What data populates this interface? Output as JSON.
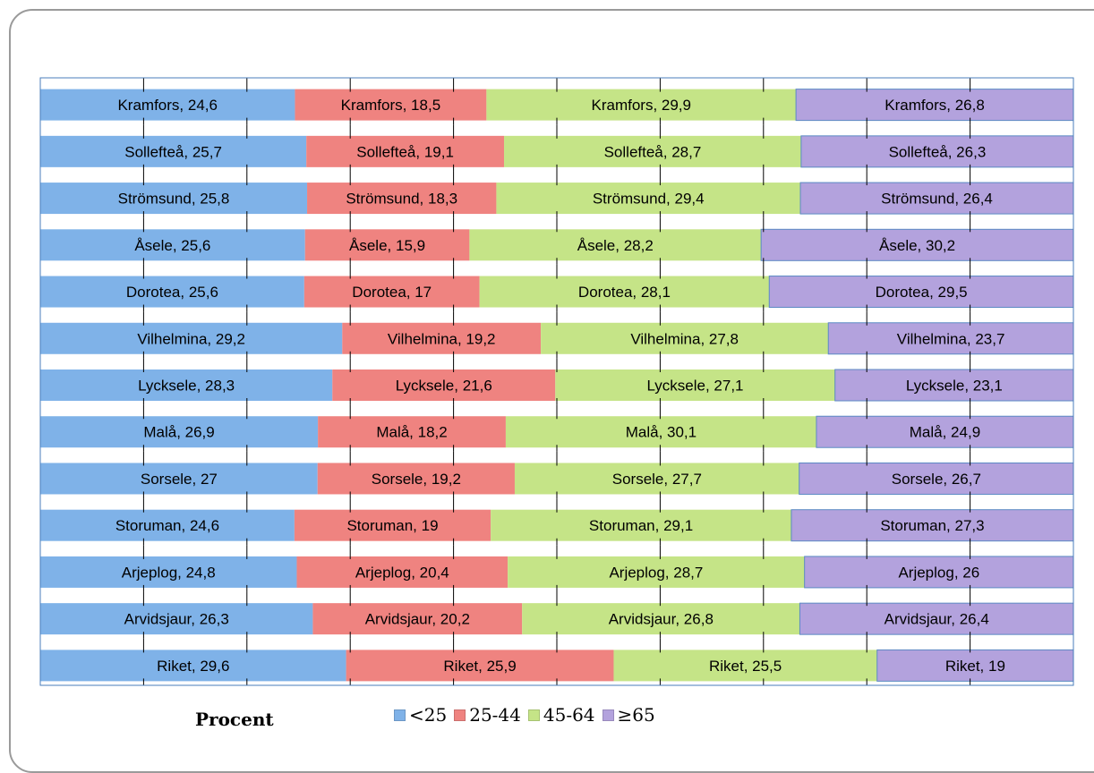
{
  "chart_data": {
    "type": "bar",
    "orientation": "horizontal",
    "stacked": true,
    "xlabel": "Procent",
    "xlim": [
      0,
      100
    ],
    "grid": "vertical",
    "legend_position": "bottom",
    "categories": [
      "Kramfors",
      "Sollefteå",
      "Strömsund",
      "Åsele",
      "Dorotea",
      "Vilhelmina",
      "Lycksele",
      "Malå",
      "Sorsele",
      "Storuman",
      "Arjeplog",
      "Arvidsjaur",
      "Riket"
    ],
    "series": [
      {
        "name": "<25",
        "color": "#7fb2e8",
        "values": [
          24.6,
          25.7,
          25.8,
          25.6,
          25.6,
          29.2,
          28.3,
          26.9,
          27,
          24.6,
          24.8,
          26.3,
          29.6
        ]
      },
      {
        "name": "25-44",
        "color": "#ef8380",
        "values": [
          18.5,
          19.1,
          18.3,
          15.9,
          17,
          19.2,
          21.6,
          18.2,
          19.2,
          19,
          20.4,
          20.2,
          25.9
        ]
      },
      {
        "name": "45-64",
        "color": "#c5e487",
        "values": [
          29.9,
          28.7,
          29.4,
          28.2,
          28.1,
          27.8,
          27.1,
          30.1,
          27.7,
          29.1,
          28.7,
          26.8,
          25.5
        ]
      },
      {
        "name": "≥65",
        "color": "#b3a2dd",
        "values": [
          26.8,
          26.3,
          26.4,
          30.2,
          29.5,
          23.7,
          23.1,
          24.9,
          26.7,
          27.3,
          26,
          26.4,
          19
        ]
      }
    ],
    "data_labels": [
      [
        "Kramfors, 24,6",
        "Sollefteå, 25,7",
        "Strömsund, 25,8",
        "Åsele, 25,6",
        "Dorotea, 25,6",
        "Vilhelmina, 29,2",
        "Lycksele, 28,3",
        "Malå, 26,9",
        "Sorsele, 27",
        "Storuman, 24,6",
        "Arjeplog, 24,8",
        "Arvidsjaur, 26,3",
        "Riket, 29,6"
      ],
      [
        "Kramfors, 18,5",
        "Sollefteå, 19,1",
        "Strömsund, 18,3",
        "Åsele, 15,9",
        "Dorotea, 17",
        "Vilhelmina, 19,2",
        "Lycksele, 21,6",
        "Malå, 18,2",
        "Sorsele, 19,2",
        "Storuman, 19",
        "Arjeplog, 20,4",
        "Arvidsjaur, 20,2",
        "Riket, 25,9"
      ],
      [
        "Kramfors, 29,9",
        "Sollefteå, 28,7",
        "Strömsund, 29,4",
        "Åsele, 28,2",
        "Dorotea, 28,1",
        "Vilhelmina, 27,8",
        "Lycksele, 27,1",
        "Malå, 30,1",
        "Sorsele, 27,7",
        "Storuman, 29,1",
        "Arjeplog, 28,7",
        "Arvidsjaur, 26,8",
        "Riket, 25,5"
      ],
      [
        "Kramfors, 26,8",
        "Sollefteå, 26,3",
        "Strömsund, 26,4",
        "Åsele, 30,2",
        "Dorotea, 29,5",
        "Vilhelmina, 23,7",
        "Lycksele, 23,1",
        "Malå, 24,9",
        "Sorsele, 26,7",
        "Storuman, 27,3",
        "Arjeplog, 26",
        "Arvidsjaur, 26,4",
        "Riket, 19"
      ]
    ]
  }
}
